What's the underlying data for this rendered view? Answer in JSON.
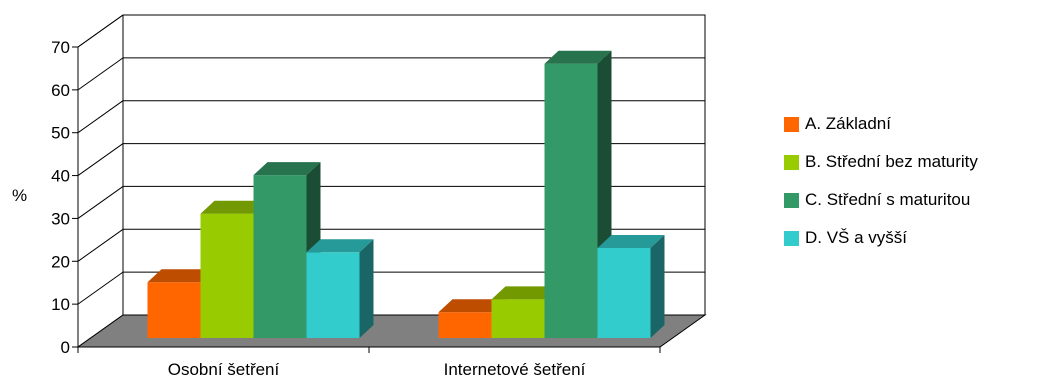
{
  "chart_data": {
    "type": "bar",
    "title": "",
    "xlabel": "",
    "ylabel": "%",
    "ylim": [
      0,
      70
    ],
    "yticks": [
      0,
      10,
      20,
      30,
      40,
      50,
      60,
      70
    ],
    "categories": [
      "Osobní šetření",
      "Internetové šetření"
    ],
    "series": [
      {
        "name": "A. Základní",
        "values": [
          13,
          6
        ],
        "color": "#ff6600"
      },
      {
        "name": "B. Střední bez maturity",
        "values": [
          29,
          9
        ],
        "color": "#99cc00"
      },
      {
        "name": "C. Střední s maturitou",
        "values": [
          38,
          64
        ],
        "color": "#339966"
      },
      {
        "name": "D. VŠ a vyšší",
        "values": [
          20,
          21
        ],
        "color": "#33cccc"
      }
    ],
    "grid": true,
    "legend_position": "right",
    "three_d": true,
    "floor_color": "#808080"
  }
}
